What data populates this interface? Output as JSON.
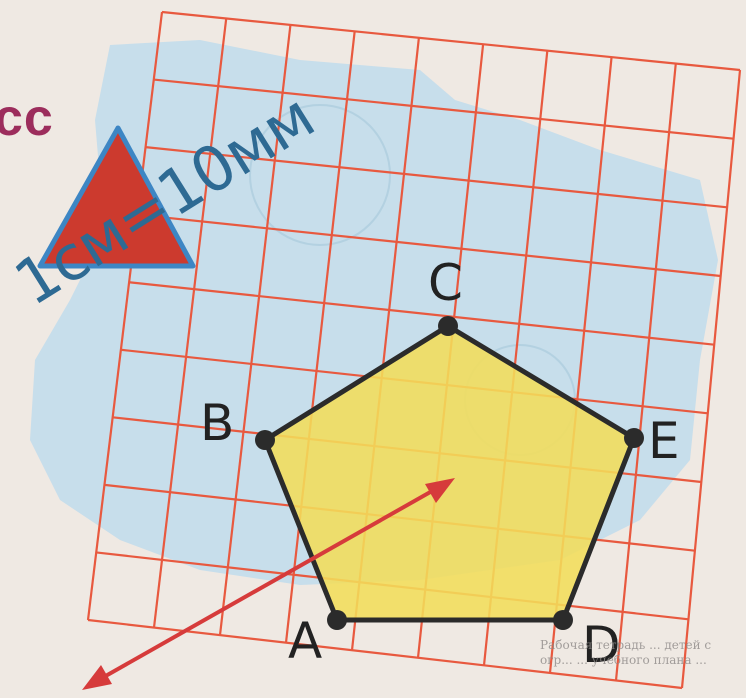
{
  "heading_fragment": "сс",
  "scale_note": "1см=10мм",
  "vertices": {
    "A": "A",
    "B": "B",
    "C": "C",
    "D": "D",
    "E": "E"
  },
  "footer_text": "Рабочая тетрадь ... детей с огр... ... учебного плана ...",
  "colors": {
    "grid_line": "#e8593f",
    "paper_tint": "#b9d9ee",
    "pentagon_fill": "#f2dd5a",
    "triangle_fill": "#cc3a2e",
    "triangle_border": "#3d86c4",
    "arrow": "#d63b3b",
    "heading": "#9c2d5c",
    "scale_note": "#2e6a93"
  }
}
